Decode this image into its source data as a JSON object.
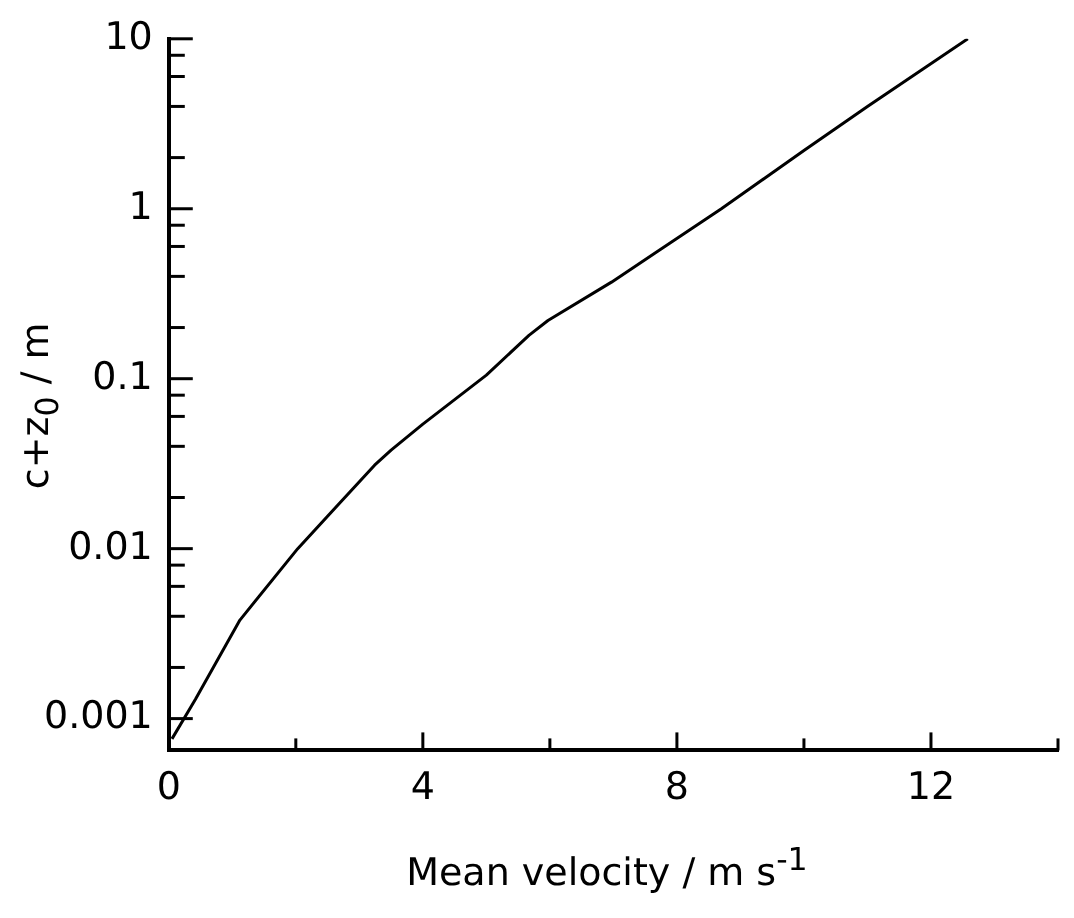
{
  "chart_data": {
    "type": "line",
    "xlabel": "Mean velocity / m  s$^{-1}$",
    "ylabel": "c+z$_{0}$ / m",
    "log": "y",
    "grid": false,
    "legend": false,
    "marker": "none",
    "line_style": "solid",
    "xlim": [
      0,
      14
    ],
    "xticks": [
      0,
      {
        "value": 2,
        "label": null
      },
      4,
      {
        "value": 6,
        "label": null
      },
      8,
      {
        "value": 10,
        "label": null
      },
      12,
      {
        "value": 14,
        "label": null
      }
    ],
    "ylim": [
      0.00065,
      10
    ],
    "yticks": [
      0.001,
      {
        "value": 0.002,
        "label": null
      },
      {
        "value": 0.004,
        "label": null
      },
      {
        "value": 0.006,
        "label": null
      },
      {
        "value": 0.008,
        "label": null
      },
      0.01,
      {
        "value": 0.02,
        "label": null
      },
      {
        "value": 0.04,
        "label": null
      },
      {
        "value": 0.06,
        "label": null
      },
      {
        "value": 0.08,
        "label": null
      },
      0.1,
      {
        "value": 0.2,
        "label": null
      },
      {
        "value": 0.4,
        "label": null
      },
      {
        "value": 0.6,
        "label": null
      },
      {
        "value": 0.8,
        "label": null
      },
      1,
      {
        "value": 2,
        "label": null
      },
      {
        "value": 4,
        "label": null
      },
      {
        "value": 6,
        "label": null
      },
      {
        "value": 8,
        "label": null
      },
      10
    ],
    "series": [
      {
        "color": "#000000",
        "x": [
          0.05,
          0.42,
          1.12,
          2.03,
          3.24,
          3.5,
          4,
          5,
          5.67,
          5.97,
          6.97,
          8.7,
          10,
          11,
          12.58
        ],
        "values": [
          0.00076,
          0.0013,
          0.0038,
          0.01,
          0.031,
          0.038,
          0.054,
          0.105,
          0.18,
          0.22,
          0.37,
          1.0,
          2.2,
          4.0,
          10
        ]
      }
    ]
  }
}
